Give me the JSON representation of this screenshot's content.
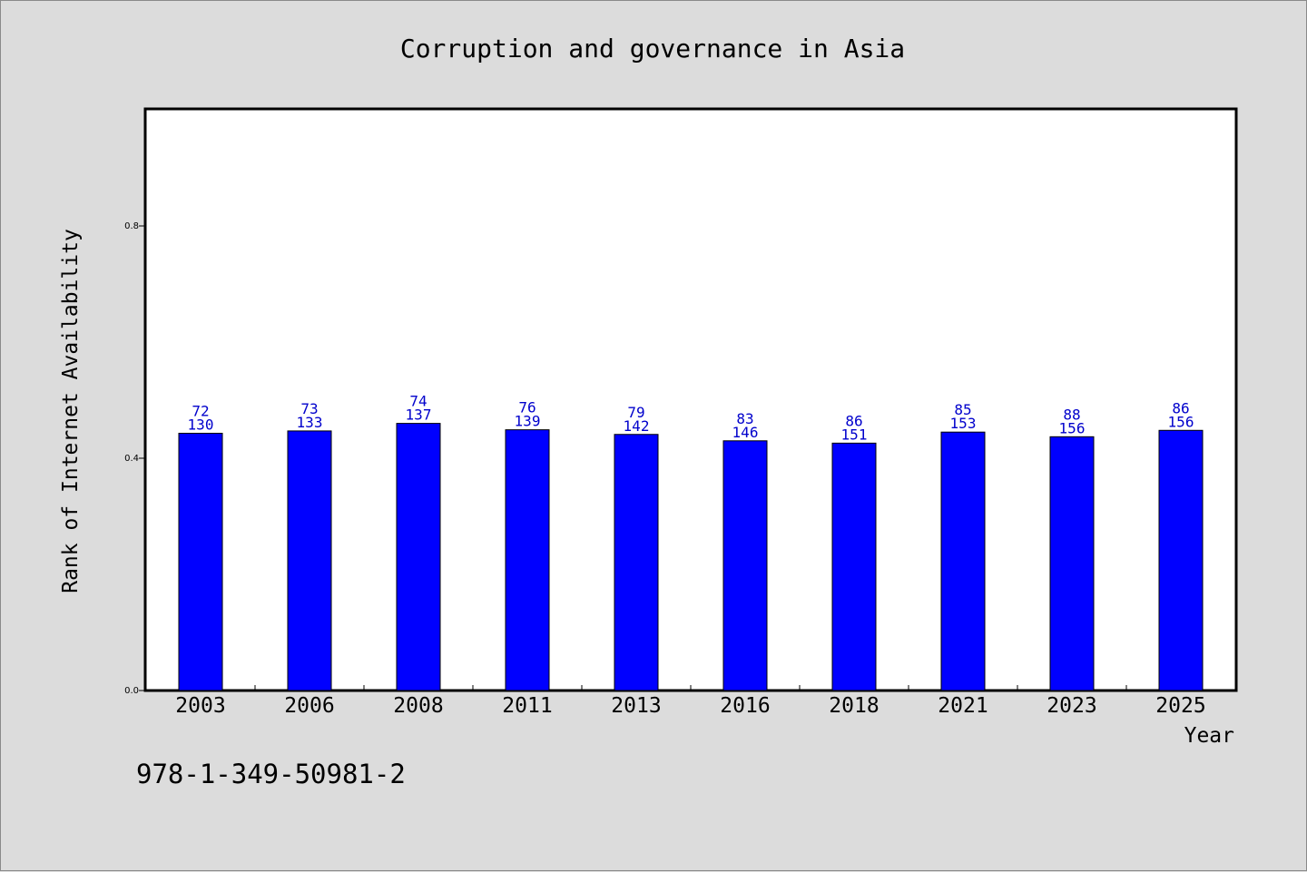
{
  "chart_data": {
    "type": "bar",
    "title": "Corruption and governance in Asia",
    "xlabel": "Year",
    "ylabel": "Rank of Internet Availability",
    "ylim": [
      0,
      1.0
    ],
    "yticks": [
      "0.0",
      "0.4",
      "0.8"
    ],
    "ytick_values": [
      0.0,
      0.4,
      0.8
    ],
    "grid": false,
    "bar_color": "#0000ff",
    "label_color": "#0000cc",
    "categories": [
      "2003",
      "2006",
      "2008",
      "2011",
      "2013",
      "2016",
      "2018",
      "2021",
      "2023",
      "2025"
    ],
    "values": [
      0.443,
      0.447,
      0.46,
      0.449,
      0.441,
      0.43,
      0.426,
      0.445,
      0.437,
      0.448
    ],
    "labels_top": [
      "72",
      "73",
      "74",
      "76",
      "79",
      "83",
      "86",
      "85",
      "88",
      "86"
    ],
    "labels_bottom": [
      "130",
      "133",
      "137",
      "139",
      "142",
      "146",
      "151",
      "153",
      "156",
      "156"
    ]
  },
  "footnote": "978-1-349-50981-2",
  "colors": {
    "background": "#dcdcdc",
    "plot_background": "#ffffff",
    "bar": "#0000ff"
  }
}
